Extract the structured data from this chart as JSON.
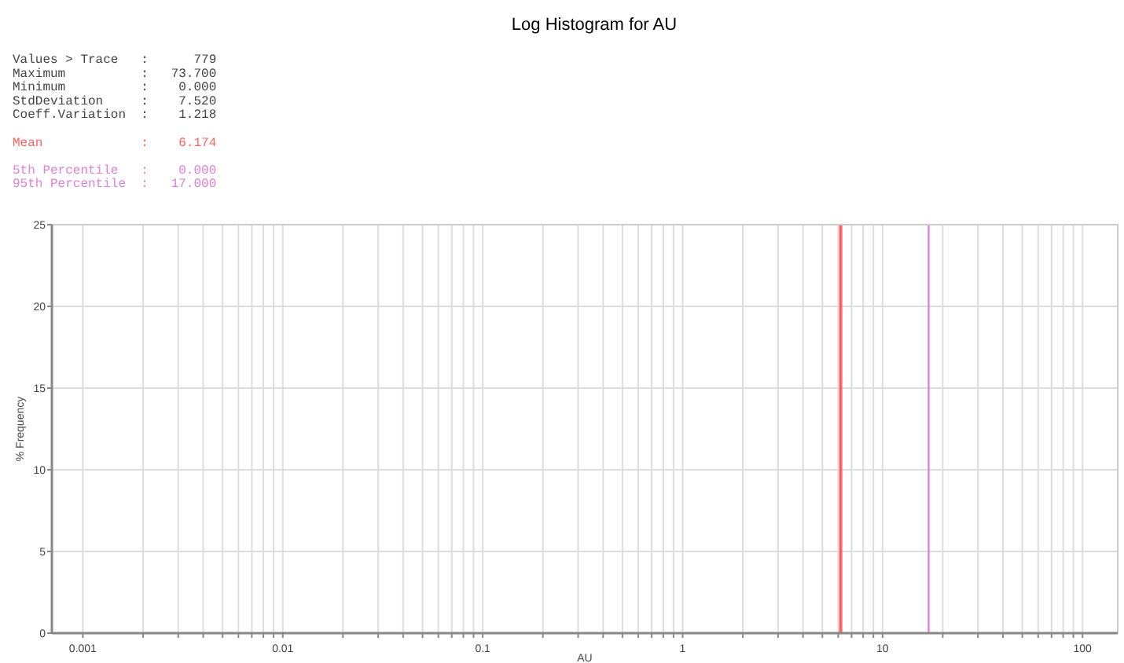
{
  "chart_data": {
    "type": "histogram",
    "title": "Log Histogram for AU",
    "xlabel": "AU",
    "ylabel": "% Frequency",
    "annotations": [
      "Values > Trace   :      779",
      "Maximum          :   73.700",
      "Minimum          :    0.000",
      "StdDeviation     :    7.520",
      "Coeff.Variation  :    1.218",
      "Mean             :    6.174",
      "5th Percentile   :    0.000",
      "95th Percentile  :   17.000"
    ],
    "ref_lines": [
      {
        "axis": "x",
        "value": 6.174,
        "color": "#ff6060"
      },
      {
        "axis": "x",
        "value": 17,
        "color": "#e080d8"
      }
    ],
    "log": "x",
    "grid": true,
    "xlim": [
      0.0007,
      150
    ],
    "xticks": [
      {
        "value": 0.001,
        "label": "0.001"
      },
      {
        "value": 0.002,
        "label": null
      },
      {
        "value": 0.003,
        "label": null
      },
      {
        "value": 0.004,
        "label": null
      },
      {
        "value": 0.005,
        "label": null
      },
      {
        "value": 0.006,
        "label": null
      },
      {
        "value": 0.007,
        "label": null
      },
      {
        "value": 0.008,
        "label": null
      },
      {
        "value": 0.009,
        "label": null
      },
      {
        "value": 0.01,
        "label": "0.01"
      },
      {
        "value": 0.02,
        "label": null
      },
      {
        "value": 0.03,
        "label": null
      },
      {
        "value": 0.04,
        "label": null
      },
      {
        "value": 0.05,
        "label": null
      },
      {
        "value": 0.06,
        "label": null
      },
      {
        "value": 0.07,
        "label": null
      },
      {
        "value": 0.08,
        "label": null
      },
      {
        "value": 0.09,
        "label": null
      },
      {
        "value": 0.1,
        "label": "0.1"
      },
      {
        "value": 0.2,
        "label": null
      },
      {
        "value": 0.3,
        "label": null
      },
      {
        "value": 0.4,
        "label": null
      },
      {
        "value": 0.5,
        "label": null
      },
      {
        "value": 0.6,
        "label": null
      },
      {
        "value": 0.7,
        "label": null
      },
      {
        "value": 0.8,
        "label": null
      },
      {
        "value": 0.9,
        "label": null
      },
      1,
      {
        "value": 2,
        "label": null
      },
      {
        "value": 3,
        "label": null
      },
      {
        "value": 4,
        "label": null
      },
      {
        "value": 5,
        "label": null
      },
      {
        "value": 6,
        "label": null
      },
      {
        "value": 7,
        "label": null
      },
      {
        "value": 8,
        "label": null
      },
      {
        "value": 9,
        "label": null
      },
      10,
      {
        "value": 20,
        "label": null
      },
      {
        "value": 30,
        "label": null
      },
      {
        "value": 40,
        "label": null
      },
      {
        "value": 50,
        "label": null
      },
      {
        "value": 60,
        "label": null
      },
      {
        "value": 70,
        "label": null
      },
      {
        "value": 80,
        "label": null
      },
      {
        "value": 90,
        "label": null
      },
      100
    ],
    "ylim": [
      0,
      25
    ],
    "yticks": [
      0,
      5,
      10,
      15,
      20,
      25
    ]
  }
}
